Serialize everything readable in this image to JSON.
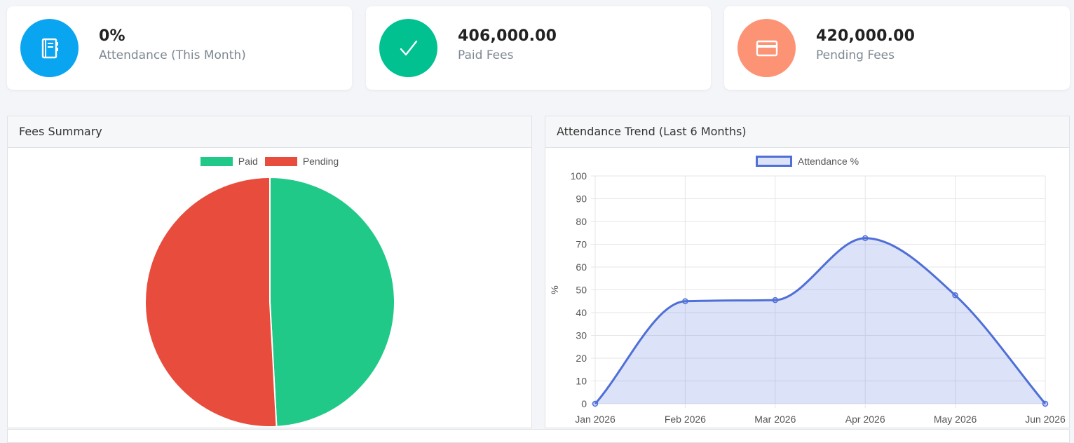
{
  "stats": [
    {
      "value": "0%",
      "label": "Attendance (This Month)",
      "color": "#0aa5f0",
      "icon": "notebook-icon"
    },
    {
      "value": "406,000.00",
      "label": "Paid Fees",
      "color": "#00c18f",
      "icon": "check-icon"
    },
    {
      "value": "420,000.00",
      "label": "Pending Fees",
      "color": "#fc9374",
      "icon": "credit-card-icon"
    }
  ],
  "fees_panel": {
    "title": "Fees Summary"
  },
  "attendance_panel": {
    "title": "Attendance Trend (Last 6 Months)"
  },
  "chart_data": [
    {
      "type": "pie",
      "title": "",
      "categories": [
        "Paid",
        "Pending"
      ],
      "values": [
        406000,
        420000
      ],
      "colors": [
        "#20c988",
        "#e74c3c"
      ],
      "legend": "top"
    },
    {
      "type": "area",
      "title": "",
      "categories": [
        "Jan 2026",
        "Feb 2026",
        "Mar 2026",
        "Apr 2026",
        "May 2026",
        "Jun 2026"
      ],
      "series": [
        {
          "name": "Attendance %",
          "values": [
            0,
            45,
            45.5,
            72.7,
            47.6,
            0
          ],
          "color": "#4f6fd8"
        }
      ],
      "xlabel": "",
      "ylabel": "%",
      "ylim": [
        0,
        100
      ],
      "yticks": [
        0,
        10,
        20,
        30,
        40,
        50,
        60,
        70,
        80,
        90,
        100
      ],
      "grid": true,
      "legend": "top"
    }
  ]
}
